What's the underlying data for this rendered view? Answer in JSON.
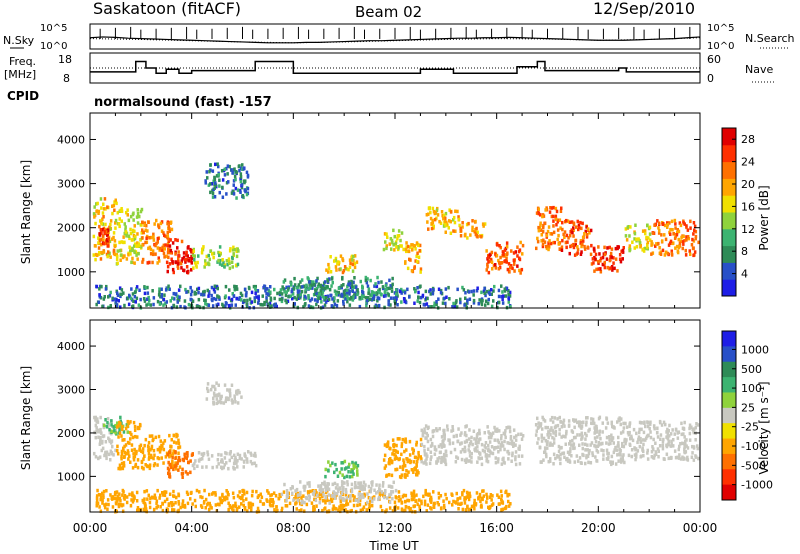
{
  "header": {
    "station": "Saskatoon (fitACF)",
    "beam": "Beam 02",
    "date": "12/Sep/2010"
  },
  "side_labels": {
    "nsky": "N.Sky",
    "freq": "Freq.",
    "freq_unit": "[MHz]",
    "cpid": "CPID",
    "nsearch": "N.Search",
    "nave": "Nave"
  },
  "cpid_text": "normalsound (fast) -157",
  "colors": {
    "power": [
      "#1e1ee6",
      "#2850c8",
      "#2e8b57",
      "#3cb371",
      "#8fd23c",
      "#f0e000",
      "#ffa500",
      "#ff7000",
      "#ff3000",
      "#e00000"
    ],
    "velocity": [
      "#1e1ee6",
      "#2850c8",
      "#2e8b57",
      "#3cb371",
      "#8fd23c",
      "#c8c8c0",
      "#f0e000",
      "#ffa500",
      "#ff7000",
      "#ff3000",
      "#e00000"
    ]
  },
  "chart_data": [
    {
      "type": "line",
      "name": "noise",
      "x_range": [
        0,
        24
      ],
      "ylim_labels": [
        "10^5",
        "10^0"
      ],
      "y2lim_labels": [
        "10^5",
        "10^0"
      ],
      "y_tick_labels": [
        "10^5",
        "10^0"
      ],
      "y2_tick_labels": [
        "10^5",
        "10^0"
      ],
      "series": [
        {
          "name": "N.Sky",
          "style": "solid",
          "x": [
            0,
            0.5,
            1,
            1.5,
            2,
            2.5,
            3,
            3.5,
            4,
            4.5,
            5,
            5.5,
            6,
            6.5,
            7,
            7.5,
            8,
            8.5,
            9,
            9.5,
            10,
            10.5,
            11,
            11.5,
            12,
            12.5,
            13,
            13.5,
            14,
            14.5,
            15,
            15.5,
            16,
            16.5,
            17,
            17.5,
            18,
            18.5,
            19,
            19.5,
            20,
            20.5,
            21,
            21.5,
            22,
            22.5,
            23,
            23.5,
            24
          ],
          "y": [
            2.2,
            2.4,
            2.3,
            2.1,
            2.0,
            1.9,
            1.8,
            1.7,
            1.6,
            1.5,
            1.4,
            1.3,
            1.2,
            1.1,
            1.0,
            1.0,
            1.0,
            1.1,
            1.1,
            1.2,
            1.3,
            1.4,
            1.5,
            1.5,
            1.6,
            1.7,
            1.8,
            1.9,
            2.0,
            2.1,
            2.1,
            2.2,
            2.2,
            2.3,
            2.2,
            2.1,
            2.0,
            1.9,
            1.8,
            1.7,
            1.6,
            1.6,
            1.6,
            1.7,
            1.8,
            1.9,
            2.0,
            2.2,
            2.4
          ]
        },
        {
          "name": "N.Search",
          "style": "dotted",
          "x": [
            0,
            2,
            4,
            6,
            8,
            10,
            12,
            14,
            16,
            18,
            20,
            22,
            24
          ],
          "y": [
            2.0,
            1.8,
            1.5,
            1.2,
            1.0,
            1.2,
            1.5,
            1.8,
            2.0,
            1.9,
            1.6,
            1.8,
            2.2
          ]
        }
      ]
    },
    {
      "type": "line",
      "name": "freq-nave",
      "x_range": [
        0,
        24
      ],
      "y_tick_labels": [
        "18",
        "8"
      ],
      "y2_tick_labels": [
        "60",
        "0"
      ],
      "ylim": [
        8,
        18
      ],
      "y2lim": [
        0,
        60
      ],
      "series": [
        {
          "name": "Freq",
          "style": "solid",
          "x": [
            0,
            1.8,
            1.8,
            2.2,
            2.2,
            2.6,
            2.6,
            3.0,
            3.0,
            3.5,
            3.5,
            4.0,
            4.0,
            6.5,
            6.5,
            7.2,
            7.2,
            7.6,
            7.6,
            8.0,
            8.0,
            13.0,
            13.0,
            14.3,
            14.3,
            16.8,
            16.8,
            17.6,
            17.6,
            17.9,
            17.9,
            20.8,
            20.8,
            21.1,
            21.1,
            24
          ],
          "y": [
            11.5,
            11.5,
            15.5,
            15.5,
            13,
            13,
            11,
            11,
            12.5,
            12.5,
            11,
            11,
            12,
            12,
            15.5,
            15.5,
            15.5,
            15.5,
            15.5,
            15.5,
            11,
            11,
            12.5,
            12.5,
            11,
            11,
            13.5,
            13.5,
            15.5,
            15.5,
            12,
            12,
            13,
            13,
            11.5,
            11.5
          ]
        },
        {
          "name": "Nave",
          "style": "dotted",
          "x": [
            0,
            24
          ],
          "y": [
            30,
            30
          ]
        }
      ]
    },
    {
      "type": "heatmap",
      "name": "power",
      "ylabel": "Slant Range [km]",
      "xlim": [
        0,
        24
      ],
      "ylim": [
        180,
        4600
      ],
      "y_ticks": [
        1000,
        2000,
        3000,
        4000
      ],
      "colorbar": {
        "label": "Power [dB]",
        "ticks": [
          4,
          8,
          12,
          16,
          20,
          24,
          28
        ],
        "range": [
          0,
          30
        ]
      },
      "blobs": [
        {
          "x": [
            0.1,
            1.0
          ],
          "y": [
            1300,
            2700
          ],
          "v": 18
        },
        {
          "x": [
            0.3,
            0.7
          ],
          "y": [
            1600,
            2000
          ],
          "v": 26
        },
        {
          "x": [
            1.0,
            2.0
          ],
          "y": [
            1200,
            2500
          ],
          "v": 16
        },
        {
          "x": [
            2.0,
            3.2
          ],
          "y": [
            1200,
            2200
          ],
          "v": 22
        },
        {
          "x": [
            3.0,
            3.6
          ],
          "y": [
            1000,
            1800
          ],
          "v": 26
        },
        {
          "x": [
            3.6,
            4.0
          ],
          "y": [
            1000,
            1600
          ],
          "v": 28
        },
        {
          "x": [
            4.0,
            5.8
          ],
          "y": [
            1100,
            1600
          ],
          "v": 14
        },
        {
          "x": [
            4.5,
            6.2
          ],
          "y": [
            2700,
            3500
          ],
          "v": 6
        },
        {
          "x": [
            9.2,
            10.5
          ],
          "y": [
            1000,
            1400
          ],
          "v": 18
        },
        {
          "x": [
            11.5,
            12.3
          ],
          "y": [
            1500,
            2000
          ],
          "v": 16
        },
        {
          "x": [
            12.3,
            13.0
          ],
          "y": [
            1000,
            1700
          ],
          "v": 20
        },
        {
          "x": [
            13.2,
            14.5
          ],
          "y": [
            1900,
            2500
          ],
          "v": 18
        },
        {
          "x": [
            14.5,
            15.5
          ],
          "y": [
            1800,
            2200
          ],
          "v": 20
        },
        {
          "x": [
            15.5,
            17.0
          ],
          "y": [
            1000,
            1700
          ],
          "v": 24
        },
        {
          "x": [
            17.5,
            18.5
          ],
          "y": [
            1500,
            2500
          ],
          "v": 22
        },
        {
          "x": [
            18.5,
            19.7
          ],
          "y": [
            1400,
            2200
          ],
          "v": 24
        },
        {
          "x": [
            19.7,
            21.0
          ],
          "y": [
            1000,
            1600
          ],
          "v": 26
        },
        {
          "x": [
            21.0,
            22.0
          ],
          "y": [
            1500,
            2100
          ],
          "v": 16
        },
        {
          "x": [
            22.0,
            23.9
          ],
          "y": [
            1400,
            2200
          ],
          "v": 22
        },
        {
          "x": [
            0.2,
            16.5
          ],
          "y": [
            200,
            700
          ],
          "v": 6
        },
        {
          "x": [
            7.5,
            12.0
          ],
          "y": [
            400,
            900
          ],
          "v": 8
        }
      ]
    },
    {
      "type": "heatmap",
      "name": "velocity",
      "ylabel": "Slant Range [km]",
      "xlabel": "Time UT",
      "xlim": [
        0,
        24
      ],
      "ylim": [
        180,
        4600
      ],
      "y_ticks": [
        1000,
        2000,
        3000,
        4000
      ],
      "x_tick_labels": [
        "00:00",
        "04:00",
        "08:00",
        "12:00",
        "16:00",
        "20:00",
        "00:00"
      ],
      "colorbar": {
        "label": "Velocity [m s⁻¹]",
        "ticks": [
          "1000",
          "500",
          "100",
          "25",
          "-25",
          "-100",
          "-500",
          "-1000"
        ]
      },
      "blobs": [
        {
          "x": [
            0.1,
            1.0
          ],
          "y": [
            1400,
            2400
          ],
          "v": 25
        },
        {
          "x": [
            0.5,
            1.5
          ],
          "y": [
            2000,
            2400
          ],
          "v": 100
        },
        {
          "x": [
            1.0,
            2.0
          ],
          "y": [
            1200,
            2300
          ],
          "v": -100
        },
        {
          "x": [
            2.0,
            3.5
          ],
          "y": [
            1200,
            2000
          ],
          "v": -100
        },
        {
          "x": [
            3.0,
            4.0
          ],
          "y": [
            1000,
            1600
          ],
          "v": -500
        },
        {
          "x": [
            4.0,
            6.5
          ],
          "y": [
            1200,
            1600
          ],
          "v": 25
        },
        {
          "x": [
            9.2,
            10.5
          ],
          "y": [
            1000,
            1400
          ],
          "v": 100
        },
        {
          "x": [
            11.5,
            13.0
          ],
          "y": [
            1000,
            1900
          ],
          "v": -100
        },
        {
          "x": [
            13.0,
            17.0
          ],
          "y": [
            1300,
            2200
          ],
          "v": 25
        },
        {
          "x": [
            17.5,
            21.0
          ],
          "y": [
            1300,
            2400
          ],
          "v": 25
        },
        {
          "x": [
            21.0,
            23.9
          ],
          "y": [
            1400,
            2300
          ],
          "v": 25
        },
        {
          "x": [
            0.2,
            16.5
          ],
          "y": [
            200,
            700
          ],
          "v": -100
        },
        {
          "x": [
            7.5,
            12.0
          ],
          "y": [
            400,
            900
          ],
          "v": 25
        },
        {
          "x": [
            4.5,
            6.0
          ],
          "y": [
            2700,
            3200
          ],
          "v": 25
        }
      ]
    }
  ]
}
